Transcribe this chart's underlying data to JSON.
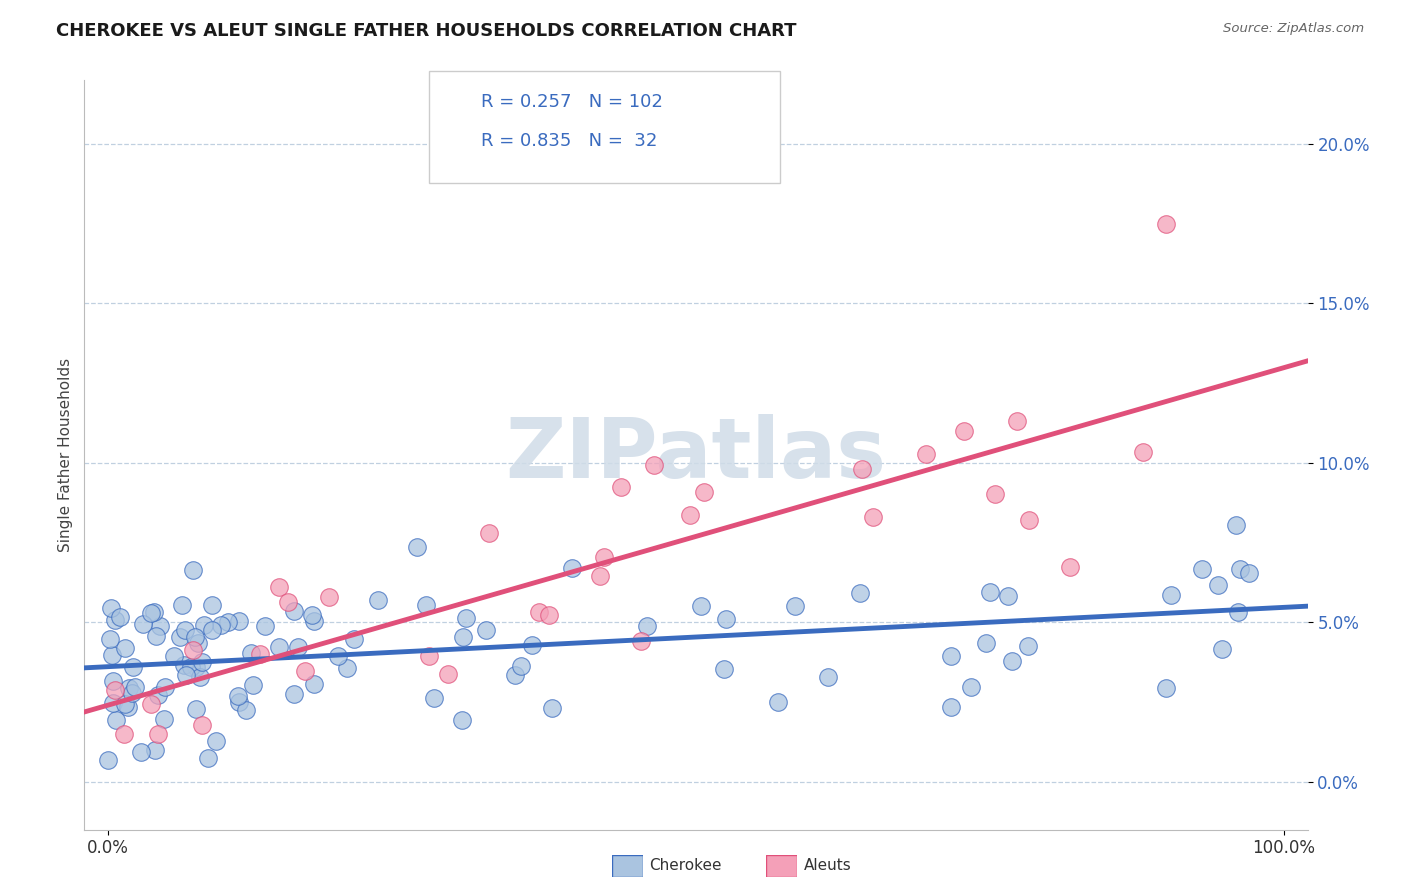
{
  "title": "CHEROKEE VS ALEUT SINGLE FATHER HOUSEHOLDS CORRELATION CHART",
  "source": "Source: ZipAtlas.com",
  "ylabel": "Single Father Households",
  "xlim": [
    -2,
    102
  ],
  "ylim": [
    -1.5,
    22
  ],
  "yticks": [
    0,
    5,
    10,
    15,
    20
  ],
  "cherokee_R": 0.257,
  "cherokee_N": 102,
  "aleut_R": 0.835,
  "aleut_N": 32,
  "cherokee_color": "#aac4e0",
  "aleut_color": "#f4a0b8",
  "cherokee_line_color": "#3a6bbf",
  "aleut_line_color": "#e0507a",
  "background_color": "#ffffff",
  "grid_color": "#c0d0e0",
  "title_color": "#1a1a1a",
  "watermark_color": "#d0dce8",
  "seed_cherokee": 12,
  "seed_aleut": 55
}
